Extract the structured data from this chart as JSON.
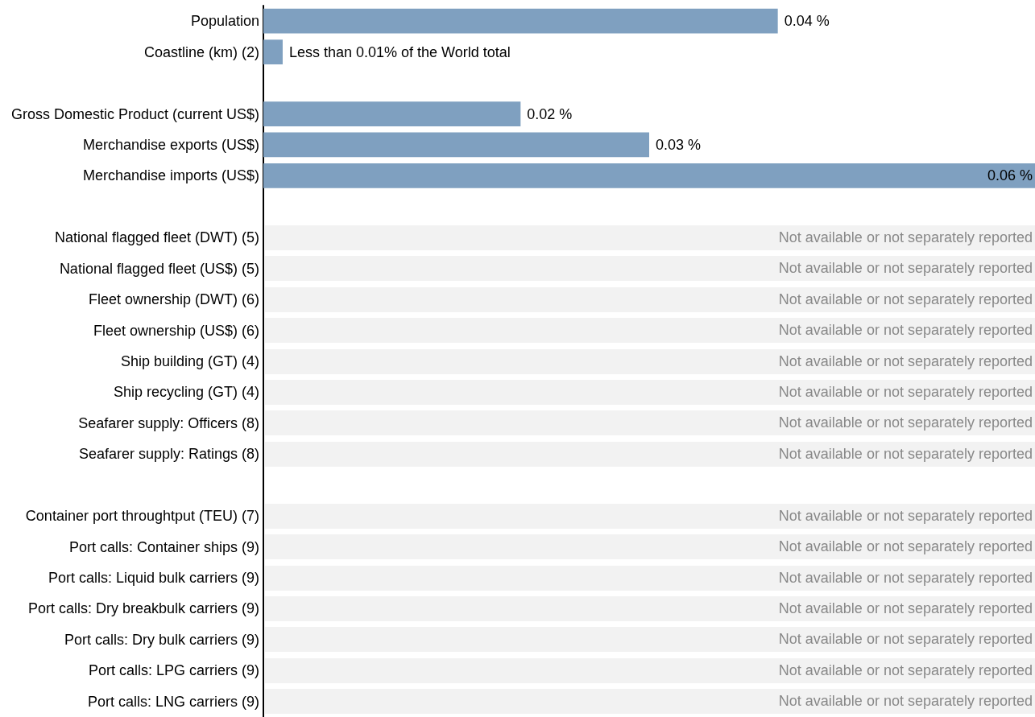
{
  "chart_data": {
    "type": "bar",
    "orientation": "horizontal",
    "xlim": [
      0,
      0.06
    ],
    "tick_labels": "y",
    "color": "#7fa0c0",
    "categories": [
      "Population",
      "Coastline (km) (2)",
      null,
      "Gross Domestic Product (current US$)",
      "Merchandise exports (US$)",
      "Merchandise imports (US$)",
      null,
      "National flagged fleet (DWT) (5)",
      "National flagged fleet (US$) (5)",
      "Fleet ownership (DWT) (6)",
      "Fleet ownership (US$) (6)",
      "Ship building (GT) (4)",
      "Ship recycling (GT) (4)",
      "Seafarer supply: Officers (8)",
      "Seafarer supply: Ratings (8)",
      null,
      "Container port throughtput (TEU) (7)",
      "Port calls: Container ships (9)",
      "Port calls: Liquid bulk carriers (9)",
      "Port calls: Dry breakbulk carriers (9)",
      "Port calls: Dry bulk carriers (9)",
      "Port calls: LPG carriers (9)",
      "Port calls: LNG carriers (9)"
    ],
    "values": [
      0.04,
      0.0015,
      null,
      0.02,
      0.03,
      0.06,
      null,
      null,
      null,
      null,
      null,
      null,
      null,
      null,
      null,
      null,
      null,
      null,
      null,
      null,
      null,
      null,
      null
    ],
    "value_labels": [
      "0.04 %",
      "Less than 0.01% of the World total",
      null,
      "0.02 %",
      "0.03 %",
      "0.06 %",
      null,
      null,
      null,
      null,
      null,
      null,
      null,
      null,
      null,
      null,
      null,
      null,
      null,
      null,
      null,
      null,
      null
    ],
    "bands": [
      {
        "axis": "y",
        "from": "National flagged fleet (DWT) (5)",
        "to": "National flagged fleet (DWT) (5)",
        "label": "Not available or not separately reported",
        "color": "#f2f2f2"
      },
      {
        "axis": "y",
        "from": "National flagged fleet (US$) (5)",
        "to": "National flagged fleet (US$) (5)",
        "label": "Not available or not separately reported",
        "color": "#f2f2f2"
      },
      {
        "axis": "y",
        "from": "Fleet ownership (DWT) (6)",
        "to": "Fleet ownership (DWT) (6)",
        "label": "Not available or not separately reported",
        "color": "#f2f2f2"
      },
      {
        "axis": "y",
        "from": "Fleet ownership (US$) (6)",
        "to": "Fleet ownership (US$) (6)",
        "label": "Not available or not separately reported",
        "color": "#f2f2f2"
      },
      {
        "axis": "y",
        "from": "Ship building (GT) (4)",
        "to": "Ship building (GT) (4)",
        "label": "Not available or not separately reported",
        "color": "#f2f2f2"
      },
      {
        "axis": "y",
        "from": "Ship recycling (GT) (4)",
        "to": "Ship recycling (GT) (4)",
        "label": "Not available or not separately reported",
        "color": "#f2f2f2"
      },
      {
        "axis": "y",
        "from": "Seafarer supply: Officers (8)",
        "to": "Seafarer supply: Officers (8)",
        "label": "Not available or not separately reported",
        "color": "#f2f2f2"
      },
      {
        "axis": "y",
        "from": "Seafarer supply: Ratings (8)",
        "to": "Seafarer supply: Ratings (8)",
        "label": "Not available or not separately reported",
        "color": "#f2f2f2"
      },
      {
        "axis": "y",
        "from": "Container port throughtput (TEU) (7)",
        "to": "Container port throughtput (TEU) (7)",
        "label": "Not available or not separately reported",
        "color": "#f2f2f2"
      },
      {
        "axis": "y",
        "from": "Port calls: Container ships (9)",
        "to": "Port calls: Container ships (9)",
        "label": "Not available or not separately reported",
        "color": "#f2f2f2"
      },
      {
        "axis": "y",
        "from": "Port calls: Liquid bulk carriers (9)",
        "to": "Port calls: Liquid bulk carriers (9)",
        "label": "Not available or not separately reported",
        "color": "#f2f2f2"
      },
      {
        "axis": "y",
        "from": "Port calls: Dry breakbulk carriers (9)",
        "to": "Port calls: Dry breakbulk carriers (9)",
        "label": "Not available or not separately reported",
        "color": "#f2f2f2"
      },
      {
        "axis": "y",
        "from": "Port calls: Dry bulk carriers (9)",
        "to": "Port calls: Dry bulk carriers (9)",
        "label": "Not available or not separately reported",
        "color": "#f2f2f2"
      },
      {
        "axis": "y",
        "from": "Port calls: LPG carriers (9)",
        "to": "Port calls: LPG carriers (9)",
        "label": "Not available or not separately reported",
        "color": "#f2f2f2"
      },
      {
        "axis": "y",
        "from": "Port calls: LNG carriers (9)",
        "to": "Port calls: LNG carriers (9)",
        "label": "Not available or not separately reported",
        "color": "#f2f2f2"
      }
    ]
  }
}
